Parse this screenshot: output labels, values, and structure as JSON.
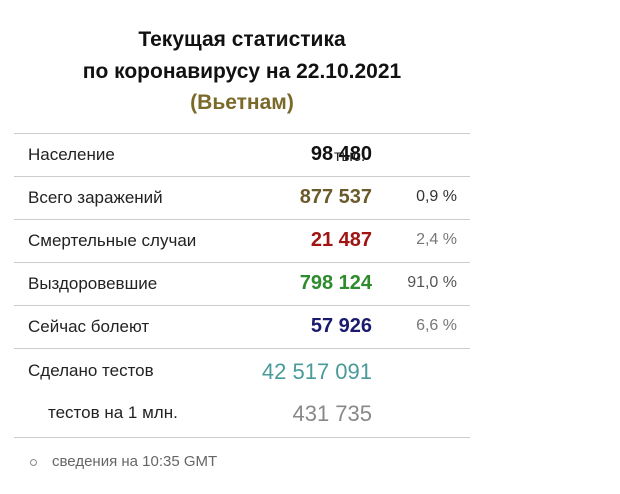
{
  "header": {
    "title": [
      "Текущая статистика",
      "по коронавирусу на 22.10.2021",
      "(Вьетнам)"
    ]
  },
  "table": {
    "rows": [
      [
        "Население",
        "98 480",
        "тыс."
      ],
      [
        "Всего заражений",
        "877 537",
        "0,9 %"
      ],
      [
        "Смертельные случаи",
        "21 487",
        "2,4 %"
      ],
      [
        "Выздоровевшие",
        "798 124",
        "91,0 %"
      ],
      [
        "Сейчас болеют",
        "57 926",
        "6,6 %"
      ],
      [
        "Сделано тестов",
        "42 517 091"
      ],
      [
        "тестов на 1 млн.",
        "431 735"
      ]
    ]
  },
  "footer": {
    "note": "сведения на 10:35 GMT"
  }
}
